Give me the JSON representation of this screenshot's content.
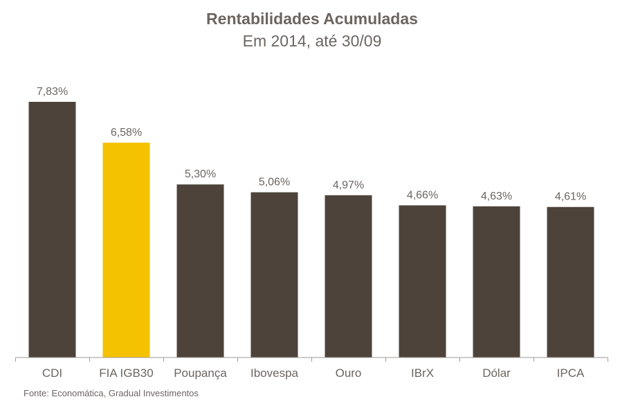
{
  "chart_data": {
    "type": "bar",
    "title": "Rentabilidades Acumuladas",
    "subtitle": "Em 2014, até 30/09",
    "categories": [
      "CDI",
      "FIA IGB30",
      "Poupança",
      "Ibovespa",
      "Ouro",
      "IBrX",
      "Dólar",
      "IPCA"
    ],
    "values": [
      7.83,
      6.58,
      5.3,
      5.06,
      4.97,
      4.66,
      4.63,
      4.61
    ],
    "value_labels": [
      "7,83%",
      "6,58%",
      "5,30%",
      "5,06%",
      "4,97%",
      "4,66%",
      "4,63%",
      "4,61%"
    ],
    "highlight_category": "FIA IGB30",
    "colors": {
      "default_bar": "#4d433a",
      "highlight_bar": "#f5c200",
      "axis": "#a09a94",
      "text": "#6b6560"
    },
    "ylim": [
      0,
      7.83
    ],
    "grid": false,
    "legend": "none",
    "source": "Fonte: Economática,  Gradual Investimentos"
  }
}
